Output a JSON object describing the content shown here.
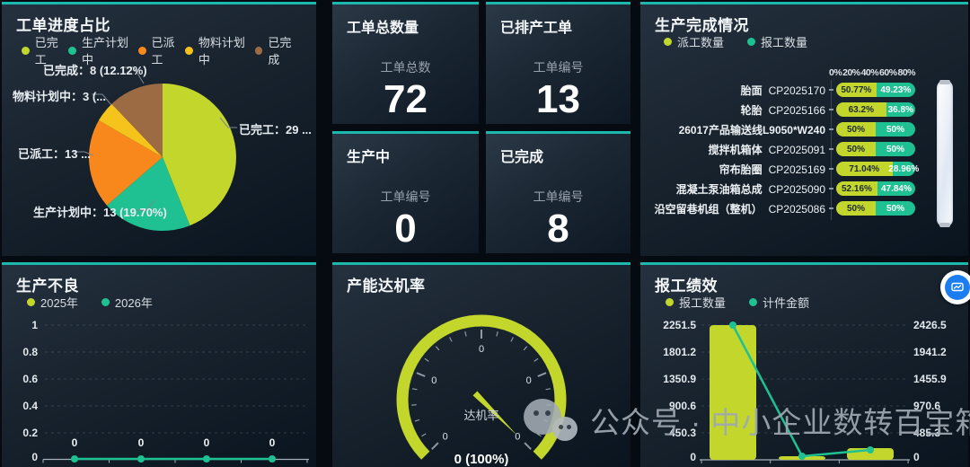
{
  "colors": {
    "lime": "#c3d62c",
    "teal": "#1fc193",
    "orange": "#f8881c",
    "gold": "#f5c41c",
    "brown": "#9c6b44",
    "accent": "#1cb8ae",
    "chat_blue": "#1b7df0"
  },
  "watermark": {
    "text": "公众号 · 中小企业数转百宝箱"
  },
  "panels": {
    "order_progress": {
      "title": "工单进度占比",
      "legend": [
        "已完工",
        "生产计划中",
        "已派工",
        "物料计划中",
        "已完成"
      ]
    },
    "kpis": [
      {
        "title": "工单总数量",
        "label": "工单总数",
        "value": "72"
      },
      {
        "title": "已排产工单",
        "label": "工单编号",
        "value": "13"
      },
      {
        "title": "生产中",
        "label": "工单编号",
        "value": "0"
      },
      {
        "title": "已完成",
        "label": "工单编号",
        "value": "8"
      }
    ],
    "production_completion": {
      "title": "生产完成情况",
      "legend": [
        "派工数量",
        "报工数量"
      ],
      "axis_labels": [
        "0%",
        "20%",
        "40%",
        "60%",
        "80%"
      ]
    },
    "production_defects": {
      "title": "生产不良",
      "legend": [
        "2025年",
        "2026年"
      ]
    },
    "capacity_gauge": {
      "title": "产能达机率",
      "center_label": "达机率",
      "value_label": "0 (100%)"
    },
    "report_performance": {
      "title": "报工绩效",
      "legend": [
        "报工数量",
        "计件金额"
      ]
    }
  },
  "chart_data": [
    {
      "id": "order_progress_pie",
      "type": "pie",
      "title": "工单进度占比",
      "labels": [
        "已完工",
        "生产计划中",
        "已派工",
        "物料计划中",
        "已完成"
      ],
      "values": [
        29,
        13,
        13,
        3,
        8
      ],
      "total": 66,
      "color_keys": [
        "lime",
        "teal",
        "orange",
        "gold",
        "brown"
      ],
      "callouts": [
        "已完成：8 (12.12%)",
        "物料计划中：3 (...",
        "已派工：13 ...",
        "生产计划中：13 (19.70%)",
        "已完工：29 ..."
      ]
    },
    {
      "id": "production_completion",
      "type": "bar",
      "orientation": "horizontal",
      "stacked": true,
      "x_ticks": [
        "0%",
        "20%",
        "40%",
        "60%",
        "80%"
      ],
      "series": [
        "派工数量",
        "报工数量"
      ],
      "rows": [
        {
          "name": "胎面",
          "code": "CP2025170",
          "dispatch_pct": 50.77,
          "report_pct": 49.23,
          "dispatch_label": "50.77%",
          "report_label": "49.23%"
        },
        {
          "name": "轮胎",
          "code": "CP2025166",
          "dispatch_pct": 63.2,
          "report_pct": 36.8,
          "dispatch_label": "63.2%",
          "report_label": "36.8%"
        },
        {
          "name": "26017产品输送线L9050*W240",
          "code": "",
          "dispatch_pct": 50,
          "report_pct": 50,
          "dispatch_label": "50%",
          "report_label": "50%"
        },
        {
          "name": "搅拌机箱体",
          "code": "CP2025091",
          "dispatch_pct": 50,
          "report_pct": 50,
          "dispatch_label": "50%",
          "report_label": "50%"
        },
        {
          "name": "帘布胎圈",
          "code": "CP2025169",
          "dispatch_pct": 71.04,
          "report_pct": 28.96,
          "dispatch_label": "71.04%",
          "report_label": "28.96%"
        },
        {
          "name": "混凝土泵油箱总成",
          "code": "CP2025090",
          "dispatch_pct": 52.16,
          "report_pct": 47.84,
          "dispatch_label": "52.16%",
          "report_label": "47.84%"
        },
        {
          "name": "沿空留巷机组（整机）",
          "code": "CP2025086",
          "dispatch_pct": 50,
          "report_pct": 50,
          "dispatch_label": "50%",
          "report_label": "50%"
        }
      ]
    },
    {
      "id": "production_defects",
      "type": "line",
      "y_ticks": [
        "1",
        "0.8",
        "0.6",
        "0.4",
        "0.2",
        "0"
      ],
      "y_range": [
        0,
        1
      ],
      "series": [
        {
          "name": "2025年",
          "values": []
        },
        {
          "name": "2026年",
          "values": [
            0,
            0,
            0,
            0
          ]
        }
      ],
      "point_labels": [
        "0",
        "0",
        "0",
        "0"
      ]
    },
    {
      "id": "capacity_gauge",
      "type": "gauge",
      "tick_labels": [
        "0",
        "0",
        "0",
        "0",
        "0"
      ],
      "center_label": "达机率",
      "value_label": "0 (100%)",
      "percent": 100
    },
    {
      "id": "report_performance",
      "type": "bar+line",
      "left_y_ticks": [
        "2251.5",
        "1801.2",
        "1350.9",
        "900.6",
        "450.3",
        "0"
      ],
      "right_y_ticks": [
        "2426.5",
        "1941.2",
        "1455.9",
        "970.6",
        "485.3",
        "0"
      ],
      "left_max": 2251.5,
      "right_max": 2426.5,
      "series": [
        {
          "name": "报工数量",
          "type": "bar",
          "values": [
            2251.5,
            60,
            195
          ]
        },
        {
          "name": "计件金额",
          "type": "line",
          "values": [
            2426.5,
            65,
            178
          ]
        }
      ]
    }
  ]
}
